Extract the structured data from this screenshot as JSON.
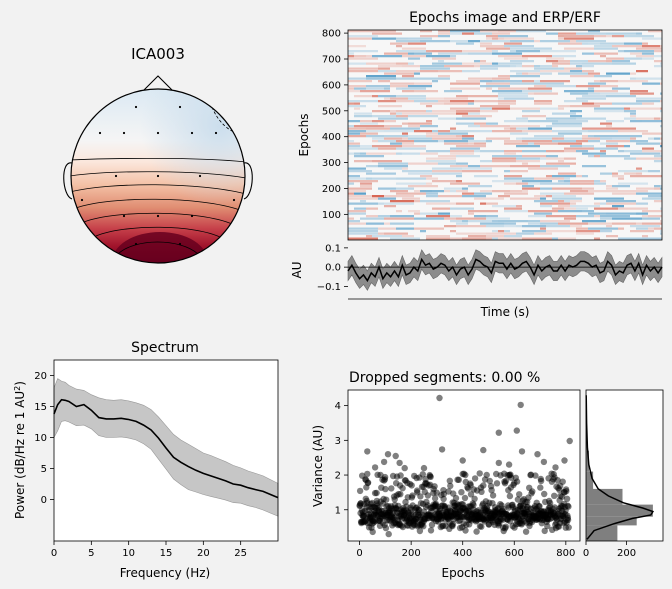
{
  "figure": {
    "background": "#f2f2f2"
  },
  "topomap": {
    "title": "ICA003"
  },
  "epochs_panel": {
    "title": "Epochs image and ERP/ERF"
  },
  "chart_data": [
    {
      "type": "heatmap",
      "title": "Epochs image and ERP/ERF",
      "ylabel": "Epochs",
      "yticks": [
        100,
        200,
        300,
        400,
        500,
        600,
        700,
        800
      ],
      "ylim": [
        1,
        812
      ],
      "colormap": [
        "#67001f",
        "#f7f7f7",
        "#053061"
      ]
    },
    {
      "type": "line",
      "xlabel": "Time (s)",
      "ylabel": "AU",
      "yticks": [
        "0.1",
        "0.0",
        "−0.1"
      ],
      "ylim": [
        -0.16,
        0.12
      ],
      "mean": [
        -0.02,
        0.01,
        -0.03,
        -0.06,
        -0.04,
        -0.07,
        -0.03,
        -0.05,
        0.0,
        -0.06,
        -0.03,
        -0.05,
        -0.02,
        -0.05,
        0.01,
        -0.04,
        -0.03,
        0.0,
        -0.02,
        0.04,
        0.01,
        0.02,
        -0.01,
        0.0,
        0.02,
        0.01,
        -0.02,
        0.0,
        -0.04,
        -0.01,
        0.0,
        -0.04,
        -0.01,
        0.04,
        0.03,
        0.01,
        0.0,
        -0.03,
        0.03,
        0.02,
        0.02,
        -0.01,
        0.02,
        -0.01,
        0.0,
        0.02,
        0.03,
        0.0,
        -0.04,
        0.01,
        -0.02,
        0.0,
        0.01,
        -0.02,
        -0.02,
        0.01,
        -0.02,
        0.01,
        0.0,
        0.01,
        0.03,
        0.03,
        0.02,
        0.0,
        0.01,
        -0.03,
        -0.02,
        0.03,
        0.01,
        -0.04,
        -0.02,
        -0.03,
        0.01,
        0.02,
        -0.02,
        0.02,
        -0.04,
        0.01,
        -0.02,
        0.0,
        -0.03,
        0.0
      ],
      "band_halfwidth": 0.05
    },
    {
      "type": "area",
      "title": "Spectrum",
      "xlabel": "Frequency (Hz)",
      "ylabel_main": "Power (dB/Hz re 1 AU",
      "ylabel_sup": "2",
      "ylabel_end": ")",
      "xticks": [
        0,
        5,
        10,
        15,
        20,
        25
      ],
      "yticks": [
        0,
        5,
        10,
        15,
        20
      ],
      "xlim": [
        0,
        30
      ],
      "ylim": [
        -6.7,
        22.5
      ],
      "x": [
        0,
        0.5,
        1,
        1.5,
        2,
        3,
        4,
        5,
        6,
        7,
        8,
        9,
        10,
        11,
        12,
        13,
        14,
        15,
        16,
        17,
        18,
        19,
        20,
        21,
        22,
        23,
        24,
        25,
        26,
        27,
        28,
        29,
        30
      ],
      "mean": [
        13.8,
        15.3,
        16.1,
        16.0,
        15.8,
        15.0,
        15.3,
        14.4,
        13.2,
        13.0,
        13.0,
        13.1,
        12.9,
        12.6,
        12.0,
        11.2,
        9.9,
        8.3,
        6.8,
        6.0,
        5.3,
        4.7,
        4.2,
        3.8,
        3.4,
        3.0,
        2.5,
        2.3,
        1.9,
        1.6,
        1.3,
        0.8,
        0.3
      ],
      "upper": [
        18.0,
        19.5,
        19.1,
        18.9,
        18.4,
        17.8,
        17.6,
        16.9,
        16.4,
        16.1,
        16.0,
        16.1,
        15.9,
        15.6,
        15.2,
        14.5,
        13.3,
        11.9,
        10.5,
        9.6,
        8.9,
        8.2,
        7.5,
        7.1,
        6.6,
        6.1,
        5.5,
        5.1,
        4.6,
        4.2,
        3.8,
        3.2,
        2.6
      ],
      "lower": [
        10.0,
        11.1,
        12.6,
        12.7,
        12.5,
        11.9,
        12.0,
        11.4,
        10.3,
        10.0,
        10.0,
        10.1,
        9.9,
        9.6,
        9.0,
        8.1,
        6.5,
        4.9,
        3.3,
        2.4,
        1.6,
        1.2,
        0.8,
        0.5,
        0.2,
        -0.1,
        -0.5,
        -0.6,
        -1.0,
        -1.3,
        -1.7,
        -2.2,
        -2.7
      ],
      "colors": {
        "line": "#000000",
        "band": "#b3b3b3"
      }
    },
    {
      "type": "scatter",
      "title": "Dropped segments: 0.00 %",
      "xlabel": "Epochs",
      "ylabel": "Variance (AU)",
      "xticks": [
        0,
        200,
        400,
        600,
        800
      ],
      "yticks": [
        1,
        2,
        3,
        4
      ],
      "xlim": [
        -45,
        855
      ],
      "ylim": [
        0.1,
        4.45
      ],
      "outliers": [
        [
          310,
          4.22
        ],
        [
          625,
          4.02
        ],
        [
          815,
          2.98
        ],
        [
          610,
          3.28
        ],
        [
          540,
          3.22
        ],
        [
          320,
          2.74
        ],
        [
          480,
          2.72
        ],
        [
          690,
          2.6
        ],
        [
          30,
          2.68
        ],
        [
          540,
          2.35
        ],
        [
          630,
          2.68
        ],
        [
          580,
          2.3
        ],
        [
          110,
          2.6
        ],
        [
          400,
          2.42
        ],
        [
          95,
          2.38
        ],
        [
          155,
          2.35
        ],
        [
          60,
          2.22
        ],
        [
          715,
          2.38
        ],
        [
          175,
          2.2
        ],
        [
          250,
          2.2
        ],
        [
          760,
          2.22
        ],
        [
          795,
          2.42
        ],
        [
          140,
          2.55
        ]
      ],
      "marker_color": "#000000",
      "marker_alpha": 0.5
    },
    {
      "type": "histogram",
      "xticks": [
        0,
        200
      ],
      "xlim": [
        0,
        380
      ],
      "ylim": [
        0.1,
        4.45
      ],
      "bins": [
        [
          0.1,
          0.55,
          155
        ],
        [
          0.55,
          0.8,
          250
        ],
        [
          0.8,
          1.15,
          330
        ],
        [
          1.15,
          1.6,
          180
        ],
        [
          1.6,
          2.1,
          35
        ],
        [
          2.1,
          2.7,
          15
        ],
        [
          2.7,
          3.4,
          6
        ],
        [
          3.4,
          4.45,
          2
        ]
      ],
      "kde": [
        [
          0.15,
          5
        ],
        [
          0.4,
          40
        ],
        [
          0.6,
          140
        ],
        [
          0.75,
          230
        ],
        [
          0.85,
          320
        ],
        [
          0.95,
          330
        ],
        [
          1.05,
          280
        ],
        [
          1.2,
          185
        ],
        [
          1.4,
          110
        ],
        [
          1.6,
          60
        ],
        [
          1.9,
          30
        ],
        [
          2.3,
          14
        ],
        [
          2.8,
          7
        ],
        [
          3.5,
          3
        ],
        [
          4.3,
          1
        ]
      ],
      "colors": {
        "bar": "#7f7f7f",
        "line": "#000000"
      }
    }
  ]
}
